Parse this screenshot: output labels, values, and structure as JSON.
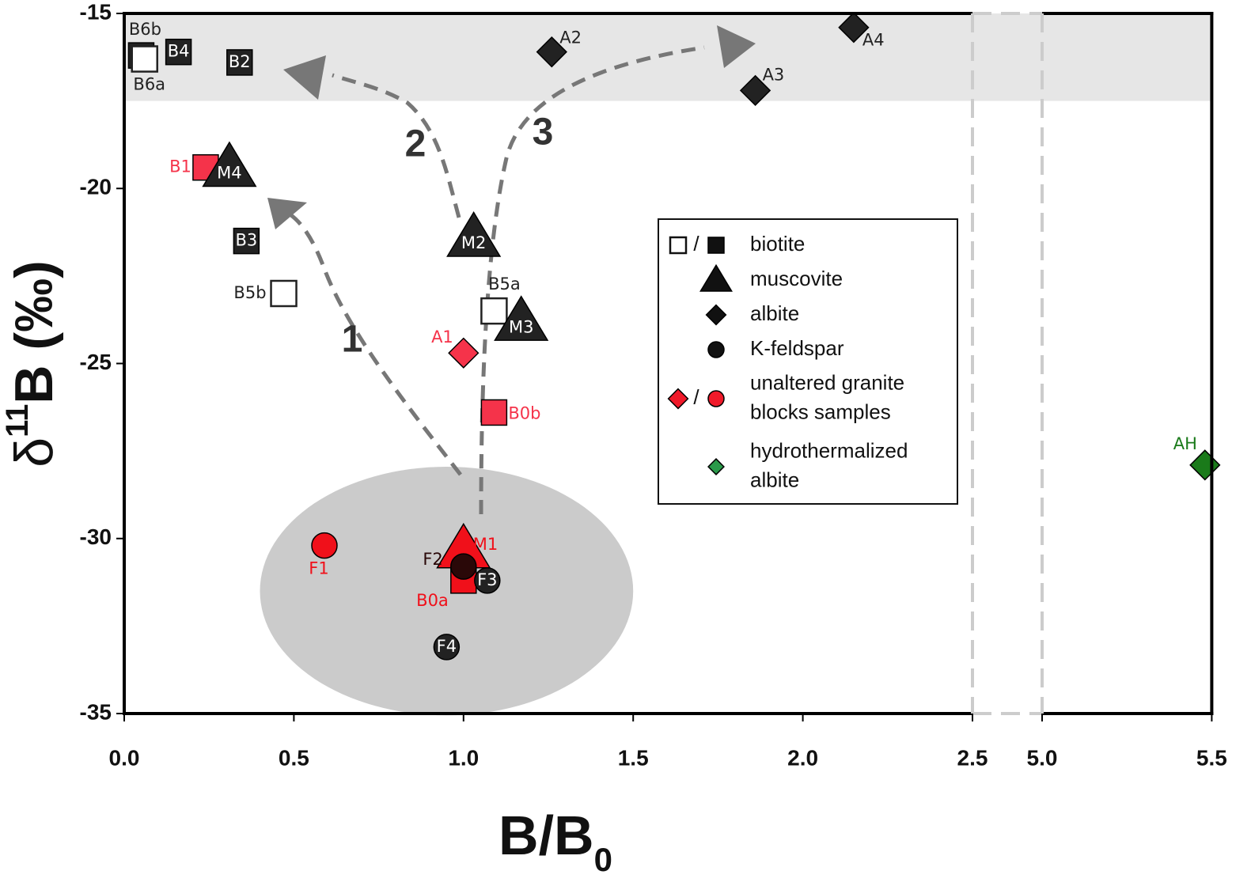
{
  "chart_data": {
    "type": "scatter",
    "xlabel": [
      "B/B",
      "0"
    ],
    "ylabel": [
      "δ",
      "11",
      "B (‰)"
    ],
    "xlim": [
      0,
      5.5
    ],
    "xbreak": [
      2.5,
      5.0
    ],
    "ylim": [
      -35,
      -15
    ],
    "xticks": [
      {
        "value": 0,
        "label": "0.0"
      },
      0.5,
      {
        "value": 1,
        "label": "1.0"
      },
      1.5,
      {
        "value": 2,
        "label": "2.0"
      },
      2.5,
      {
        "value": 5,
        "label": "5.0"
      },
      5.5
    ],
    "yticks": [
      -15,
      -20,
      -25,
      -30,
      -35
    ],
    "shaded_band": [
      -17.5,
      -15
    ],
    "band_color": "#e6e6e6",
    "ellipse": {
      "cx": 0.95,
      "cy": -31.5,
      "rx": 0.55,
      "ry": 3.55,
      "color": "#cbcbcb"
    },
    "annotations": [
      "1",
      "2",
      "3"
    ],
    "points": [
      {
        "label": "B6b",
        "marker": "square",
        "color": "#222222",
        "open": false,
        "x": 0.05,
        "y": -16.2
      },
      {
        "label": "B6a",
        "marker": "square",
        "color": "#222222",
        "open": true,
        "x": 0.06,
        "y": -16.3
      },
      {
        "label": "B4",
        "marker": "square",
        "color": "#222222",
        "open": false,
        "x": 0.16,
        "y": -16.1
      },
      {
        "label": "B2",
        "marker": "square",
        "color": "#222222",
        "open": false,
        "x": 0.34,
        "y": -16.4
      },
      {
        "label": "B1",
        "marker": "square",
        "color": "#f5334a",
        "open": false,
        "x": 0.24,
        "y": -19.4
      },
      {
        "label": "M4",
        "marker": "triangle",
        "color": "#222222",
        "open": false,
        "x": 0.31,
        "y": -19.4
      },
      {
        "label": "B3",
        "marker": "square",
        "color": "#222222",
        "open": false,
        "x": 0.36,
        "y": -21.5
      },
      {
        "label": "B5b",
        "marker": "square",
        "color": "#222222",
        "open": true,
        "x": 0.47,
        "y": -23.0
      },
      {
        "label": "M2",
        "marker": "triangle",
        "color": "#222222",
        "open": false,
        "x": 1.03,
        "y": -21.4
      },
      {
        "label": "B5a",
        "marker": "square",
        "color": "#222222",
        "open": true,
        "x": 1.09,
        "y": -23.5
      },
      {
        "label": "M3",
        "marker": "triangle",
        "color": "#222222",
        "open": false,
        "x": 1.17,
        "y": -23.8
      },
      {
        "label": "A1",
        "marker": "diamond",
        "color": "#f5334a",
        "open": false,
        "x": 1.0,
        "y": -24.7
      },
      {
        "label": "B0b",
        "marker": "square",
        "color": "#f5334a",
        "open": false,
        "x": 1.09,
        "y": -26.4
      },
      {
        "label": "A2",
        "marker": "diamond",
        "color": "#222222",
        "open": false,
        "x": 1.26,
        "y": -16.1
      },
      {
        "label": "A3",
        "marker": "diamond",
        "color": "#222222",
        "open": false,
        "x": 1.86,
        "y": -17.2
      },
      {
        "label": "A4",
        "marker": "diamond",
        "color": "#222222",
        "open": false,
        "x": 2.15,
        "y": -15.4
      },
      {
        "label": "AH",
        "marker": "diamond",
        "color": "#1a7a1a",
        "open": false,
        "x": 5.48,
        "y": -27.9
      },
      {
        "label": "F1",
        "marker": "circle",
        "color": "#f0101a",
        "open": false,
        "x": 0.59,
        "y": -30.2
      },
      {
        "label": "M1",
        "marker": "triangle",
        "color": "#f0101a",
        "open": false,
        "x": 1.0,
        "y": -30.3
      },
      {
        "label": "B0a",
        "marker": "square",
        "color": "#f0101a",
        "open": false,
        "x": 1.0,
        "y": -31.2
      },
      {
        "label": "F2",
        "marker": "circle",
        "color": "#2a0808",
        "open": false,
        "x": 1.0,
        "y": -30.8
      },
      {
        "label": "F3",
        "marker": "circle",
        "color": "#222222",
        "open": false,
        "x": 1.07,
        "y": -31.2
      },
      {
        "label": "F4",
        "marker": "circle",
        "color": "#222222",
        "open": false,
        "x": 0.95,
        "y": -33.1
      }
    ],
    "legend_separator": "/",
    "legend": [
      {
        "label": [
          "biotite"
        ],
        "markers": [
          {
            "marker": "square",
            "color": "#111111",
            "open": true
          },
          {
            "marker": "square",
            "color": "#111111",
            "open": false
          }
        ]
      },
      {
        "label": [
          "muscovite"
        ],
        "markers": [
          {
            "marker": "triangle",
            "color": "#111111",
            "open": false
          }
        ]
      },
      {
        "label": [
          "albite"
        ],
        "markers": [
          {
            "marker": "diamond",
            "color": "#111111",
            "open": false
          }
        ]
      },
      {
        "label": [
          "K-feldspar"
        ],
        "markers": [
          {
            "marker": "circle",
            "color": "#111111",
            "open": false
          }
        ]
      },
      {
        "label": [
          "unaltered granite",
          "blocks samples"
        ],
        "markers": [
          {
            "marker": "diamond",
            "color": "#f01a2a",
            "open": false
          },
          {
            "marker": "circle",
            "color": "#f01a2a",
            "open": false
          }
        ]
      },
      {
        "label": [
          "hydrothermalized",
          "albite"
        ],
        "markers": [
          {
            "marker": "diamond",
            "color": "#2a9a4a",
            "open": false
          }
        ]
      }
    ]
  }
}
